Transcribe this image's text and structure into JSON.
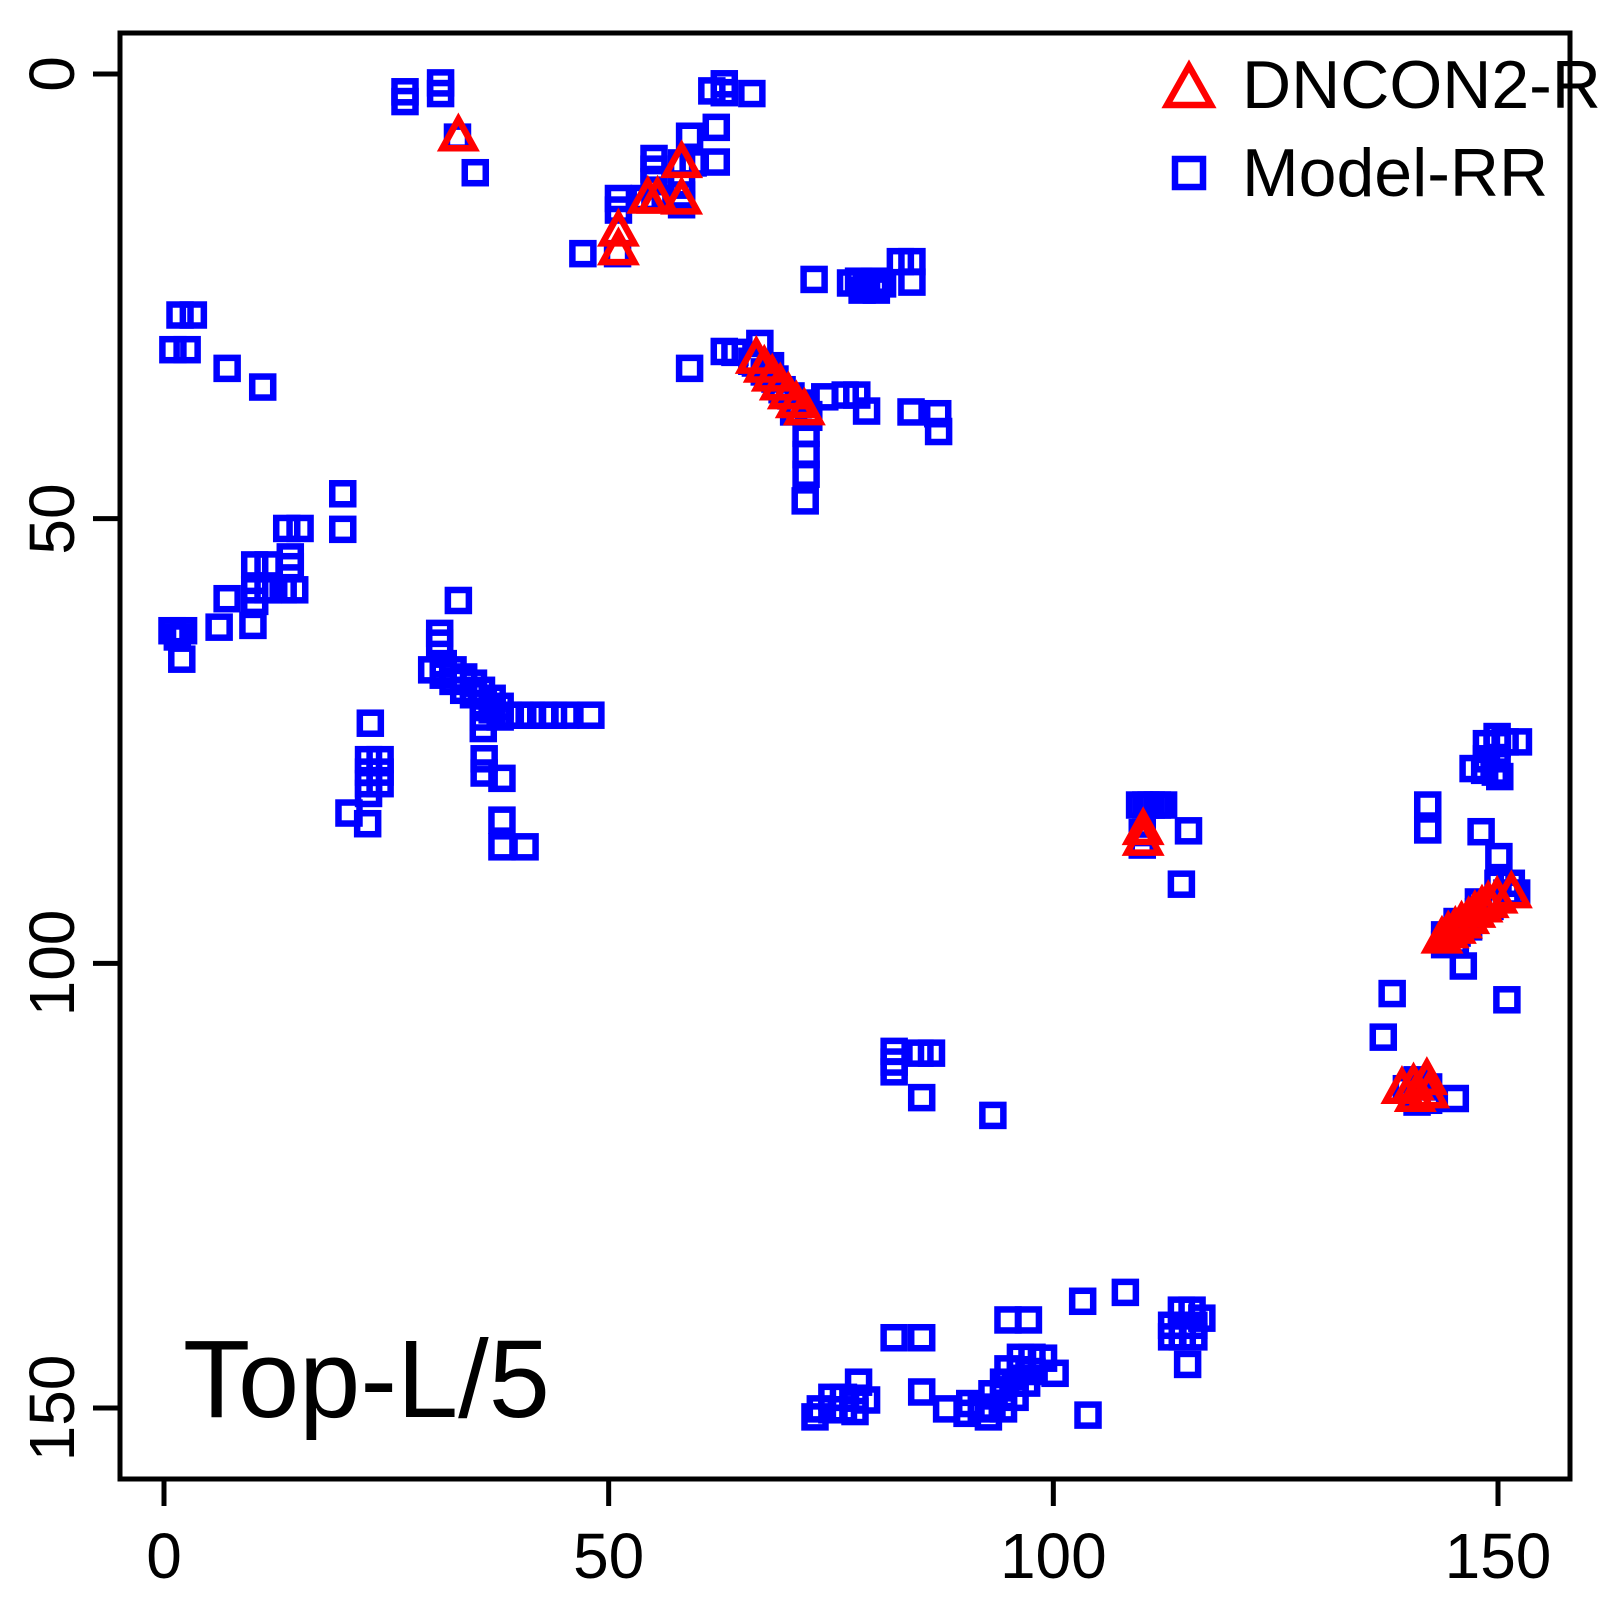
{
  "figure": {
    "background": "#FFFFFF",
    "axis_color": "#000000"
  },
  "legend": {
    "items": [
      {
        "label": "DNCON2-RR",
        "marker": "open-triangle",
        "color": "#FF0000"
      },
      {
        "label": "Model-RR",
        "marker": "open-square",
        "color": "#0000FF"
      }
    ]
  },
  "chart_data": {
    "type": "scatter",
    "title": "Top-L/5",
    "xlabel": "",
    "ylabel": "",
    "xlim": [
      0,
      158
    ],
    "ylim": [
      158,
      0
    ],
    "y_axis_inverted": true,
    "x_ticks": [
      0,
      50,
      100,
      150
    ],
    "y_ticks": [
      0,
      50,
      100,
      150
    ],
    "grid": false,
    "legend_position": "top-right",
    "series": [
      {
        "name": "Model-RR",
        "marker": "open-square",
        "color": "#0000FF",
        "points": [
          [
            27.1,
            2.0
          ],
          [
            27.1,
            3.1
          ],
          [
            31.1,
            1.0
          ],
          [
            31.1,
            2.2
          ],
          [
            33.0,
            7.1
          ],
          [
            35.0,
            11.1
          ],
          [
            61.6,
            1.9
          ],
          [
            63.0,
            1.1
          ],
          [
            63.0,
            2.1
          ],
          [
            66.1,
            2.2
          ],
          [
            62.1,
            6.0
          ],
          [
            59.1,
            7.0
          ],
          [
            62.1,
            9.9
          ],
          [
            59.5,
            10.0
          ],
          [
            58.2,
            10.0
          ],
          [
            55.1,
            9.5
          ],
          [
            55.1,
            10.7
          ],
          [
            55.1,
            12.1
          ],
          [
            58.2,
            12.5
          ],
          [
            58.2,
            13.6
          ],
          [
            58.2,
            14.7
          ],
          [
            54.0,
            14.0
          ],
          [
            55.2,
            14.0
          ],
          [
            51.1,
            14.0
          ],
          [
            51.1,
            15.3
          ],
          [
            51.0,
            20.2
          ],
          [
            47.1,
            20.2
          ],
          [
            73.1,
            23.1
          ],
          [
            77.2,
            23.5
          ],
          [
            78.1,
            23.3
          ],
          [
            79.0,
            23.6
          ],
          [
            79.9,
            23.3
          ],
          [
            80.8,
            23.6
          ],
          [
            78.5,
            24.3
          ],
          [
            80.1,
            24.3
          ],
          [
            82.8,
            21.1
          ],
          [
            84.1,
            21.1
          ],
          [
            84.1,
            23.4
          ],
          [
            1.8,
            27.1
          ],
          [
            3.3,
            27.1
          ],
          [
            1.0,
            31.0
          ],
          [
            2.6,
            31.0
          ],
          [
            7.1,
            33.1
          ],
          [
            11.1,
            35.2
          ],
          [
            59.1,
            33.1
          ],
          [
            63.0,
            31.2
          ],
          [
            64.2,
            31.3
          ],
          [
            67.0,
            30.3
          ],
          [
            66.1,
            32.3
          ],
          [
            66.5,
            32.5
          ],
          [
            67.5,
            33.5
          ],
          [
            68.2,
            32.8
          ],
          [
            68.7,
            34.3
          ],
          [
            69.5,
            35.5
          ],
          [
            70.5,
            36.2
          ],
          [
            71.3,
            37.2
          ],
          [
            72.2,
            37.0
          ],
          [
            70.8,
            38.0
          ],
          [
            72.5,
            38.3
          ],
          [
            74.3,
            36.3
          ],
          [
            76.6,
            36.1
          ],
          [
            77.9,
            36.1
          ],
          [
            79.0,
            37.9
          ],
          [
            84.0,
            38.0
          ],
          [
            87.0,
            38.2
          ],
          [
            87.1,
            40.2
          ],
          [
            72.5,
            38.6
          ],
          [
            72.2,
            40.4
          ],
          [
            72.2,
            42.8
          ],
          [
            72.2,
            45.0
          ],
          [
            72.1,
            48.0
          ],
          [
            20.1,
            47.2
          ],
          [
            20.1,
            51.2
          ],
          [
            13.8,
            51.1
          ],
          [
            15.3,
            51.1
          ],
          [
            14.2,
            54.3
          ],
          [
            14.2,
            55.4
          ],
          [
            10.2,
            55.2
          ],
          [
            11.7,
            55.2
          ],
          [
            10.2,
            58.0
          ],
          [
            10.2,
            59.3
          ],
          [
            11.7,
            58.0
          ],
          [
            13.4,
            58.0
          ],
          [
            14.7,
            58.0
          ],
          [
            7.1,
            59.0
          ],
          [
            6.2,
            62.2
          ],
          [
            10.0,
            62.0
          ],
          [
            0.9,
            62.6
          ],
          [
            2.2,
            62.6
          ],
          [
            1.5,
            63.3
          ],
          [
            2.0,
            65.8
          ],
          [
            33.1,
            59.2
          ],
          [
            31.0,
            62.9
          ],
          [
            31.0,
            64.0
          ],
          [
            30.1,
            67.0
          ],
          [
            31.4,
            66.3
          ],
          [
            31.4,
            67.6
          ],
          [
            32.5,
            67.0
          ],
          [
            32.5,
            68.3
          ],
          [
            33.7,
            67.8
          ],
          [
            33.7,
            69.3
          ],
          [
            34.8,
            68.5
          ],
          [
            34.8,
            69.8
          ],
          [
            35.7,
            69.3
          ],
          [
            35.9,
            70.8
          ],
          [
            36.9,
            70.2
          ],
          [
            36.9,
            71.5
          ],
          [
            37.8,
            71.1
          ],
          [
            37.8,
            72.3
          ],
          [
            38.7,
            72.1
          ],
          [
            35.9,
            72.3
          ],
          [
            35.9,
            73.6
          ],
          [
            40.0,
            72.1
          ],
          [
            41.3,
            72.1
          ],
          [
            42.7,
            72.1
          ],
          [
            43.8,
            72.1
          ],
          [
            45.2,
            72.1
          ],
          [
            48.0,
            72.1
          ],
          [
            36.0,
            77.0
          ],
          [
            36.0,
            78.6
          ],
          [
            38.0,
            79.2
          ],
          [
            23.2,
            73.0
          ],
          [
            23.0,
            77.1
          ],
          [
            24.3,
            77.1
          ],
          [
            23.0,
            78.5
          ],
          [
            24.3,
            78.5
          ],
          [
            23.0,
            79.8
          ],
          [
            24.3,
            79.8
          ],
          [
            23.0,
            80.9
          ],
          [
            20.8,
            83.1
          ],
          [
            22.9,
            84.3
          ],
          [
            38.0,
            83.9
          ],
          [
            38.0,
            86.9
          ],
          [
            40.6,
            86.9
          ],
          [
            109.7,
            82.2
          ],
          [
            110.4,
            82.2
          ],
          [
            111.0,
            82.2
          ],
          [
            111.7,
            82.2
          ],
          [
            112.4,
            82.2
          ],
          [
            110.0,
            85.3
          ],
          [
            110.0,
            86.7
          ],
          [
            115.2,
            85.1
          ],
          [
            114.4,
            91.1
          ],
          [
            149.9,
            74.5
          ],
          [
            148.7,
            75.3
          ],
          [
            149.9,
            75.3
          ],
          [
            150.8,
            75.1
          ],
          [
            152.3,
            75.1
          ],
          [
            148.7,
            77.0
          ],
          [
            149.9,
            77.0
          ],
          [
            147.2,
            78.1
          ],
          [
            148.5,
            78.3
          ],
          [
            149.7,
            78.5
          ],
          [
            150.2,
            79.0
          ],
          [
            142.1,
            82.2
          ],
          [
            142.1,
            85.0
          ],
          [
            148.1,
            85.2
          ],
          [
            150.1,
            88.0
          ],
          [
            150.0,
            91.0
          ],
          [
            151.5,
            91.0
          ],
          [
            151.0,
            92.1
          ],
          [
            152.1,
            92.1
          ],
          [
            147.8,
            93.1
          ],
          [
            149.1,
            93.6
          ],
          [
            147.8,
            94.2
          ],
          [
            145.4,
            95.3
          ],
          [
            146.7,
            95.9
          ],
          [
            145.4,
            96.6
          ],
          [
            144.0,
            96.8
          ],
          [
            145.2,
            97.6
          ],
          [
            144.0,
            97.9
          ],
          [
            146.1,
            100.3
          ],
          [
            138.1,
            103.4
          ],
          [
            151.0,
            104.1
          ],
          [
            137.1,
            108.3
          ],
          [
            139.7,
            114.1
          ],
          [
            140.9,
            113.1
          ],
          [
            142.2,
            113.9
          ],
          [
            140.9,
            115.6
          ],
          [
            142.2,
            115.4
          ],
          [
            145.2,
            115.2
          ],
          [
            82.1,
            109.9
          ],
          [
            82.1,
            111.1
          ],
          [
            82.1,
            112.2
          ],
          [
            85.0,
            110.1
          ],
          [
            86.3,
            110.1
          ],
          [
            85.2,
            115.1
          ],
          [
            93.2,
            117.1
          ],
          [
            103.3,
            138.0
          ],
          [
            108.1,
            137.0
          ],
          [
            94.9,
            140.1
          ],
          [
            97.2,
            140.1
          ],
          [
            82.1,
            142.1
          ],
          [
            85.2,
            142.1
          ],
          [
            114.4,
            139.0
          ],
          [
            115.6,
            139.0
          ],
          [
            116.7,
            139.9
          ],
          [
            113.3,
            140.7
          ],
          [
            114.5,
            140.7
          ],
          [
            115.8,
            140.7
          ],
          [
            113.3,
            142.0
          ],
          [
            114.5,
            142.0
          ],
          [
            115.8,
            142.0
          ],
          [
            115.1,
            145.1
          ],
          [
            96.3,
            144.3
          ],
          [
            97.6,
            144.3
          ],
          [
            98.9,
            144.4
          ],
          [
            100.2,
            146.1
          ],
          [
            94.9,
            145.6
          ],
          [
            96.3,
            145.7
          ],
          [
            97.6,
            145.9
          ],
          [
            94.4,
            147.1
          ],
          [
            95.7,
            147.2
          ],
          [
            97.0,
            147.2
          ],
          [
            93.1,
            148.4
          ],
          [
            94.4,
            148.6
          ],
          [
            95.7,
            148.8
          ],
          [
            93.1,
            149.9
          ],
          [
            94.4,
            150.1
          ],
          [
            92.7,
            151.0
          ],
          [
            85.2,
            148.2
          ],
          [
            88.0,
            150.1
          ],
          [
            90.6,
            149.5
          ],
          [
            91.9,
            150.1
          ],
          [
            90.3,
            150.6
          ],
          [
            78.1,
            147.1
          ],
          [
            75.1,
            148.8
          ],
          [
            76.4,
            148.8
          ],
          [
            77.7,
            148.9
          ],
          [
            79.0,
            149.1
          ],
          [
            73.8,
            150.1
          ],
          [
            75.1,
            150.2
          ],
          [
            76.4,
            150.2
          ],
          [
            77.7,
            150.4
          ],
          [
            73.2,
            151.0
          ],
          [
            103.9,
            150.8
          ]
        ]
      },
      {
        "name": "DNCON2-RR",
        "marker": "open-triangle",
        "color": "#FF0000",
        "points": [
          [
            33.1,
            7.0
          ],
          [
            58.2,
            10.0
          ],
          [
            54.4,
            14.0
          ],
          [
            55.5,
            14.0
          ],
          [
            58.2,
            14.1
          ],
          [
            51.1,
            17.7
          ],
          [
            51.1,
            19.8
          ],
          [
            66.6,
            32.0
          ],
          [
            67.5,
            33.0
          ],
          [
            68.4,
            34.0
          ],
          [
            69.3,
            35.0
          ],
          [
            70.2,
            36.0
          ],
          [
            71.1,
            37.0
          ],
          [
            72.0,
            37.8
          ],
          [
            110.1,
            85.0
          ],
          [
            110.1,
            86.2
          ],
          [
            143.7,
            97.2
          ],
          [
            144.4,
            96.6
          ],
          [
            145.2,
            96.1
          ],
          [
            145.9,
            95.5
          ],
          [
            146.7,
            95.0
          ],
          [
            147.4,
            94.3
          ],
          [
            148.2,
            93.7
          ],
          [
            148.9,
            93.2
          ],
          [
            149.9,
            92.7
          ],
          [
            151.5,
            92.1
          ],
          [
            139.2,
            114.1
          ],
          [
            140.5,
            113.7
          ],
          [
            142.0,
            113.1
          ],
          [
            140.7,
            115.0
          ],
          [
            142.2,
            114.6
          ]
        ]
      }
    ]
  }
}
